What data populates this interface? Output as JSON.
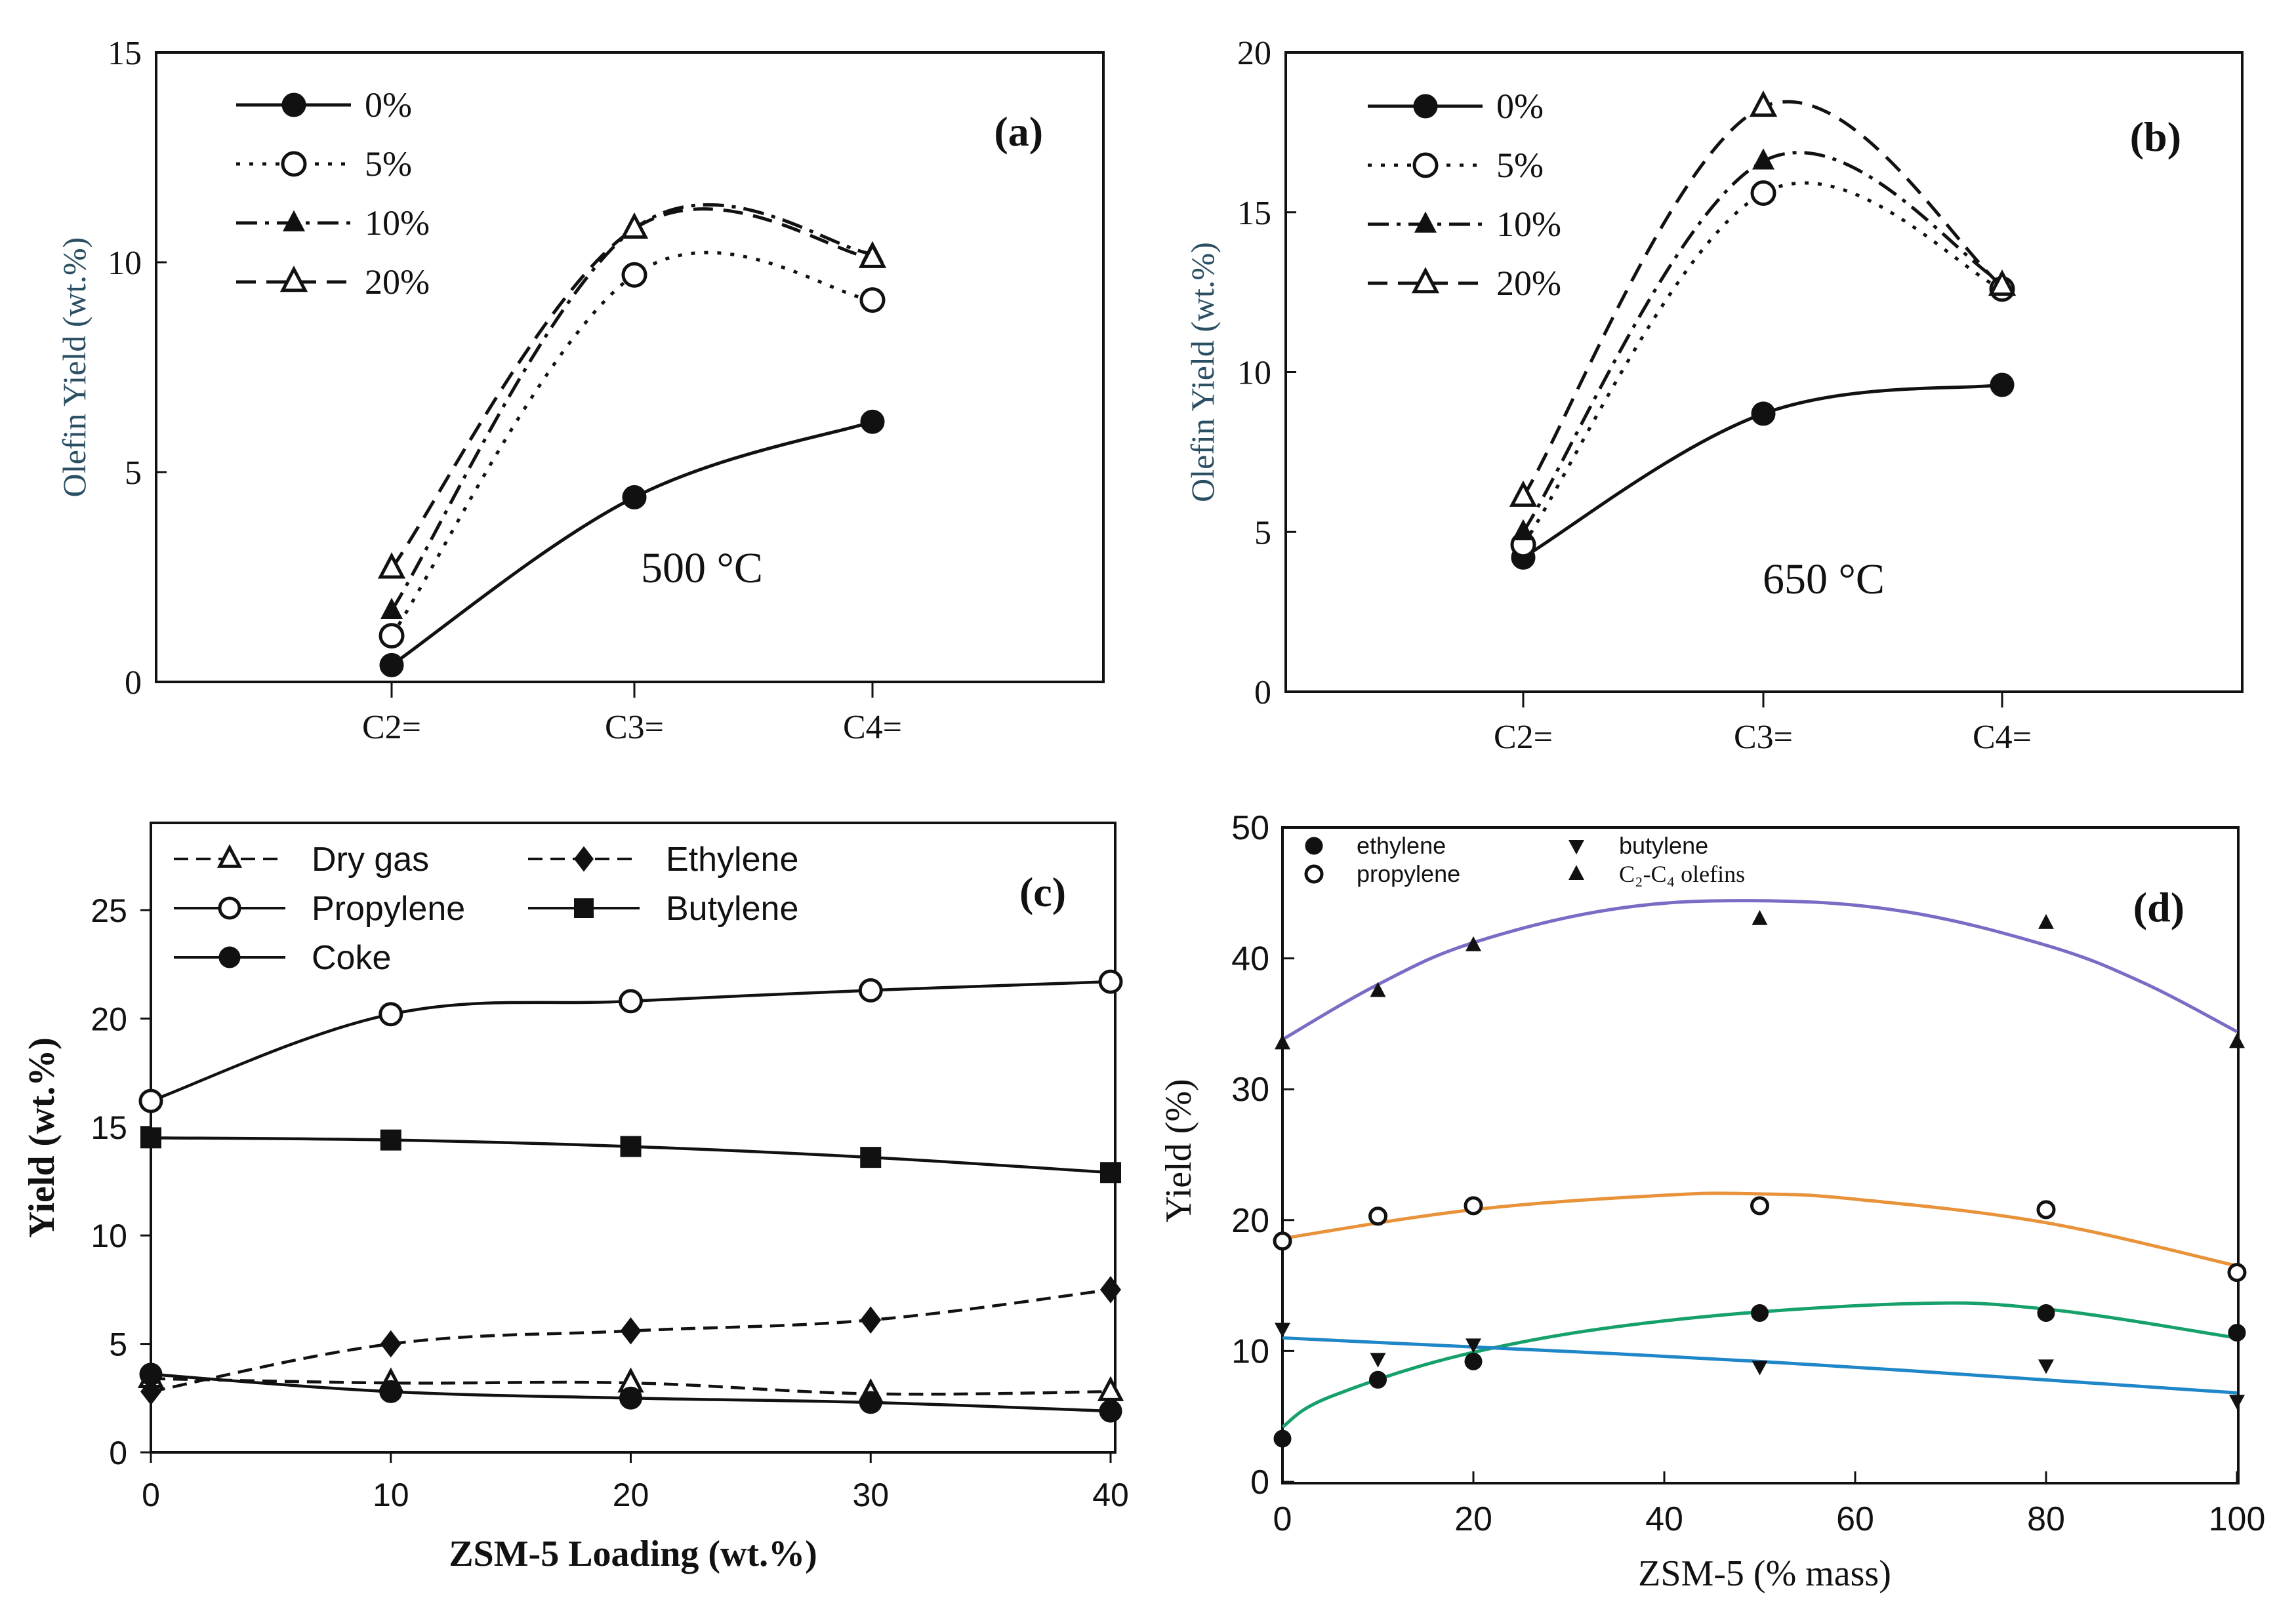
{
  "chart_data": [
    {
      "id": "a",
      "type": "line",
      "panel_label": "(a)",
      "annotation": "500 °C",
      "ylabel": "Olefin Yield (wt.%)",
      "xlabel": "",
      "categories": [
        "C2=",
        "C3=",
        "C4="
      ],
      "ylim": [
        0,
        15
      ],
      "yticks": [
        "0",
        "5",
        "10",
        "15"
      ],
      "grid": false,
      "legend_position": "top-left",
      "series": [
        {
          "name": "0%",
          "values": [
            0.4,
            4.4,
            6.2
          ],
          "marker": "filled-circle",
          "dash": "solid"
        },
        {
          "name": "5%",
          "values": [
            1.1,
            9.7,
            9.1
          ],
          "marker": "open-circle",
          "dash": "dotted"
        },
        {
          "name": "10%",
          "values": [
            1.7,
            10.8,
            10.2
          ],
          "marker": "filled-triangle",
          "dash": "dash-dot"
        },
        {
          "name": "20%",
          "values": [
            2.7,
            10.8,
            10.1
          ],
          "marker": "open-triangle",
          "dash": "dashed"
        }
      ]
    },
    {
      "id": "b",
      "type": "line",
      "panel_label": "(b)",
      "annotation": "650 °C",
      "ylabel": "Olefin Yield (wt.%)",
      "xlabel": "",
      "categories": [
        "C2=",
        "C3=",
        "C4="
      ],
      "ylim": [
        0,
        20
      ],
      "yticks": [
        "0",
        "5",
        "10",
        "15",
        "20"
      ],
      "grid": false,
      "legend_position": "top-left",
      "series": [
        {
          "name": "0%",
          "values": [
            4.2,
            8.7,
            9.6
          ],
          "marker": "filled-circle",
          "dash": "solid"
        },
        {
          "name": "5%",
          "values": [
            4.6,
            15.6,
            12.6
          ],
          "marker": "open-circle",
          "dash": "dotted"
        },
        {
          "name": "10%",
          "values": [
            5.0,
            16.6,
            12.8
          ],
          "marker": "filled-triangle",
          "dash": "dash-dot"
        },
        {
          "name": "20%",
          "values": [
            6.1,
            18.3,
            12.7
          ],
          "marker": "open-triangle",
          "dash": "dashed"
        }
      ]
    },
    {
      "id": "c",
      "type": "line",
      "panel_label": "(c)",
      "ylabel": "Yield (wt.%)",
      "xlabel": "ZSM-5 Loading (wt.%)",
      "x": [
        0,
        10,
        20,
        30,
        40
      ],
      "xticks": [
        "0",
        "10",
        "20",
        "30",
        "40"
      ],
      "xlim": [
        0,
        40
      ],
      "ylim": [
        0,
        29
      ],
      "yticks": [
        "0",
        "5",
        "10",
        "15",
        "20",
        "25"
      ],
      "grid": false,
      "legend_position": "top",
      "series": [
        {
          "name": "Dry gas",
          "values": [
            3.4,
            3.2,
            3.2,
            2.7,
            2.8
          ],
          "marker": "open-triangle",
          "dash": "dashed"
        },
        {
          "name": "Ethylene",
          "values": [
            2.8,
            5.0,
            5.6,
            6.1,
            7.5
          ],
          "marker": "filled-diamond",
          "dash": "dashed"
        },
        {
          "name": "Propylene",
          "values": [
            16.2,
            20.2,
            20.8,
            21.3,
            21.7
          ],
          "marker": "open-circle",
          "dash": "solid"
        },
        {
          "name": "Butylene",
          "values": [
            14.5,
            14.4,
            14.1,
            13.6,
            12.9
          ],
          "marker": "filled-square",
          "dash": "solid"
        },
        {
          "name": "Coke",
          "values": [
            3.6,
            2.8,
            2.5,
            2.3,
            1.9
          ],
          "marker": "filled-circle",
          "dash": "solid"
        }
      ]
    },
    {
      "id": "d",
      "type": "scatter",
      "panel_label": "(d)",
      "ylabel": "Yield (%)",
      "xlabel": "ZSM-5 (% mass)",
      "xlim": [
        0,
        100
      ],
      "xticks": [
        "0",
        "20",
        "40",
        "60",
        "80",
        "100"
      ],
      "ylim": [
        0,
        50
      ],
      "yticks": [
        "0",
        "10",
        "20",
        "30",
        "40",
        "50"
      ],
      "grid": false,
      "legend_position": "top-left",
      "series": [
        {
          "name": "ethylene",
          "marker": "filled-circle",
          "x": [
            0,
            10,
            20,
            50,
            80,
            100
          ],
          "values": [
            3.3,
            7.8,
            9.2,
            12.9,
            12.9,
            11.4
          ],
          "fit_color": "#16a06a",
          "fit": [
            0,
            5,
            20,
            40,
            65,
            80,
            100
          ],
          "fit_values": [
            4.2,
            6.5,
            9.9,
            12.3,
            13.6,
            13.2,
            11.0
          ]
        },
        {
          "name": "propylene",
          "marker": "open-circle",
          "x": [
            0,
            10,
            20,
            50,
            80,
            100
          ],
          "values": [
            18.4,
            20.3,
            21.1,
            21.1,
            20.8,
            16.0
          ],
          "fit_color": "#e8923a",
          "fit": [
            0,
            20,
            40,
            50,
            60,
            80,
            100
          ],
          "fit_values": [
            18.6,
            20.8,
            21.9,
            22.0,
            21.6,
            19.8,
            16.5
          ]
        },
        {
          "name": "butylene",
          "marker": "filled-triangle-down",
          "x": [
            0,
            10,
            20,
            50,
            80,
            100
          ],
          "values": [
            11.7,
            9.4,
            10.5,
            8.8,
            8.9,
            6.2
          ],
          "fit_color": "#1f86c8",
          "fit": [
            0,
            50,
            100
          ],
          "fit_values": [
            11.0,
            9.2,
            6.8
          ]
        },
        {
          "name": "C₂-C₄ olefins",
          "marker": "filled-triangle-up",
          "x": [
            0,
            10,
            20,
            50,
            80,
            100
          ],
          "values": [
            33.5,
            37.5,
            41.0,
            43.0,
            42.7,
            33.6
          ],
          "fit_color": "#7b6bc4",
          "fit": [
            0,
            10,
            20,
            35,
            50,
            65,
            80,
            90,
            100
          ],
          "fit_values": [
            33.8,
            38.0,
            41.2,
            43.8,
            44.4,
            43.6,
            41.0,
            38.2,
            34.4
          ]
        }
      ]
    }
  ]
}
